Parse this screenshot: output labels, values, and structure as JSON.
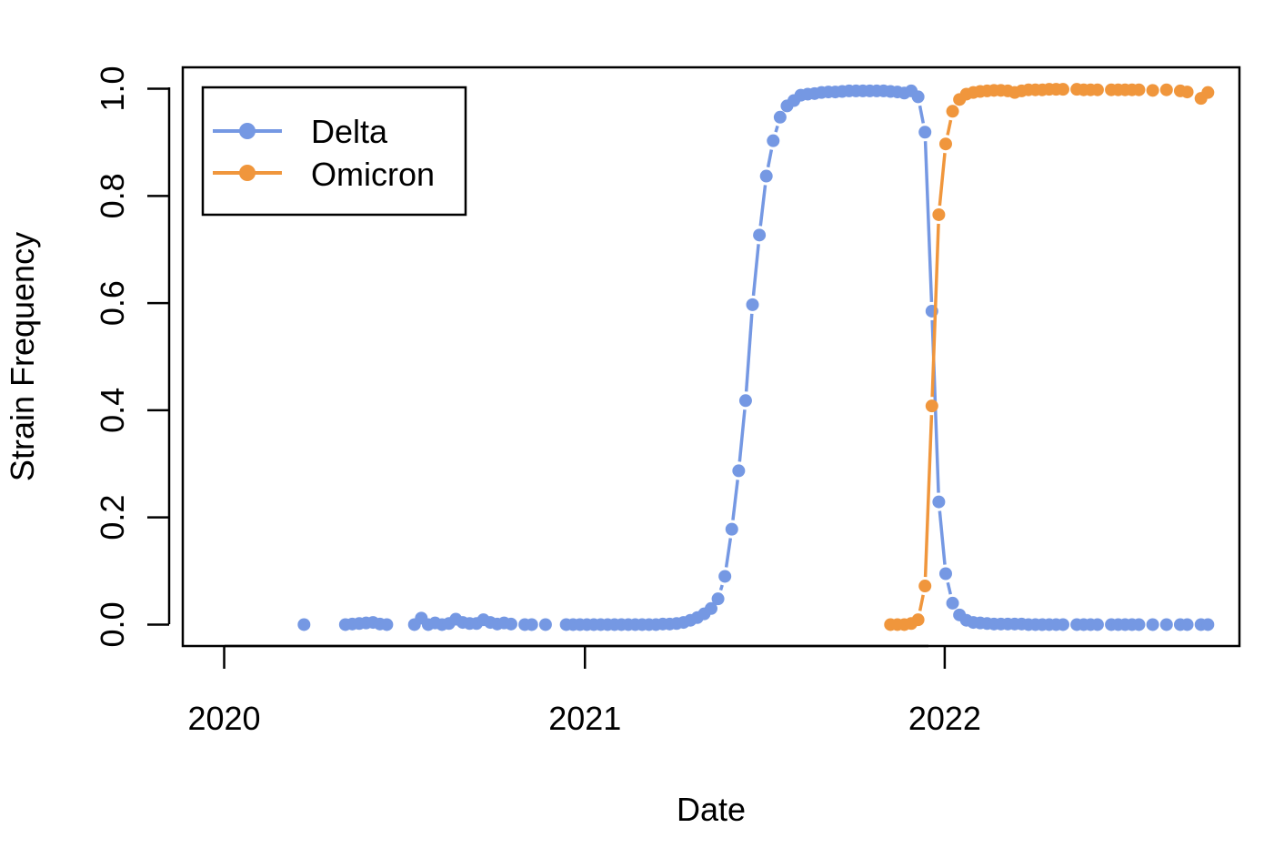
{
  "chart_data": {
    "type": "line",
    "xlabel": "Date",
    "ylabel": "Strain Frequency",
    "xlim": [
      "2019-11-20",
      "2022-10-27"
    ],
    "ylim": [
      -0.04,
      1.04
    ],
    "x_ticks": [
      "2020-01-01",
      "2021-01-01",
      "2022-01-01"
    ],
    "x_tick_labels": [
      "2020",
      "2021",
      "2022"
    ],
    "y_ticks": [
      0.0,
      0.2,
      0.4,
      0.6,
      0.8,
      1.0
    ],
    "y_tick_labels": [
      "0.0",
      "0.2",
      "0.4",
      "0.6",
      "0.8",
      "1.0"
    ],
    "grid": false,
    "legend_position": "top-left",
    "series": [
      {
        "name": "Delta",
        "color": "#7598E3",
        "points": [
          [
            "2020-03-22",
            0.0
          ],
          [
            "2020-05-03",
            0.0
          ],
          [
            "2020-05-10",
            0.001
          ],
          [
            "2020-05-17",
            0.002
          ],
          [
            "2020-05-24",
            0.003
          ],
          [
            "2020-05-31",
            0.004
          ],
          [
            "2020-06-07",
            0.001
          ],
          [
            "2020-06-14",
            0.0
          ],
          [
            "2020-07-12",
            0.0
          ],
          [
            "2020-07-19",
            0.012
          ],
          [
            "2020-07-26",
            0.0
          ],
          [
            "2020-08-02",
            0.003
          ],
          [
            "2020-08-09",
            0.0
          ],
          [
            "2020-08-16",
            0.002
          ],
          [
            "2020-08-23",
            0.01
          ],
          [
            "2020-08-30",
            0.004
          ],
          [
            "2020-09-06",
            0.002
          ],
          [
            "2020-09-13",
            0.002
          ],
          [
            "2020-09-20",
            0.009
          ],
          [
            "2020-09-27",
            0.004
          ],
          [
            "2020-10-04",
            0.001
          ],
          [
            "2020-10-11",
            0.003
          ],
          [
            "2020-10-18",
            0.001
          ],
          [
            "2020-11-01",
            0.0
          ],
          [
            "2020-11-08",
            0.0
          ],
          [
            "2020-11-22",
            0.0
          ],
          [
            "2020-12-13",
            0.0
          ],
          [
            "2020-12-20",
            0.0
          ],
          [
            "2020-12-27",
            0.0
          ],
          [
            "2021-01-03",
            0.0
          ],
          [
            "2021-01-10",
            0.0
          ],
          [
            "2021-01-17",
            0.0
          ],
          [
            "2021-01-24",
            0.0
          ],
          [
            "2021-01-31",
            0.0
          ],
          [
            "2021-02-07",
            0.0
          ],
          [
            "2021-02-14",
            0.0
          ],
          [
            "2021-02-21",
            0.0
          ],
          [
            "2021-02-28",
            0.0
          ],
          [
            "2021-03-07",
            0.0
          ],
          [
            "2021-03-14",
            0.0
          ],
          [
            "2021-03-21",
            0.001
          ],
          [
            "2021-03-28",
            0.001
          ],
          [
            "2021-04-04",
            0.002
          ],
          [
            "2021-04-11",
            0.004
          ],
          [
            "2021-04-18",
            0.008
          ],
          [
            "2021-04-25",
            0.013
          ],
          [
            "2021-05-02",
            0.02
          ],
          [
            "2021-05-09",
            0.03
          ],
          [
            "2021-05-16",
            0.048
          ],
          [
            "2021-05-23",
            0.09
          ],
          [
            "2021-05-30",
            0.178
          ],
          [
            "2021-06-06",
            0.287
          ],
          [
            "2021-06-13",
            0.418
          ],
          [
            "2021-06-20",
            0.597
          ],
          [
            "2021-06-27",
            0.727
          ],
          [
            "2021-07-04",
            0.837
          ],
          [
            "2021-07-11",
            0.903
          ],
          [
            "2021-07-18",
            0.947
          ],
          [
            "2021-07-25",
            0.968
          ],
          [
            "2021-08-01",
            0.978
          ],
          [
            "2021-08-08",
            0.988
          ],
          [
            "2021-08-15",
            0.99
          ],
          [
            "2021-08-22",
            0.991
          ],
          [
            "2021-08-29",
            0.993
          ],
          [
            "2021-09-05",
            0.994
          ],
          [
            "2021-09-12",
            0.994
          ],
          [
            "2021-09-19",
            0.995
          ],
          [
            "2021-09-26",
            0.996
          ],
          [
            "2021-10-03",
            0.996
          ],
          [
            "2021-10-10",
            0.996
          ],
          [
            "2021-10-17",
            0.996
          ],
          [
            "2021-10-24",
            0.996
          ],
          [
            "2021-10-31",
            0.996
          ],
          [
            "2021-11-07",
            0.995
          ],
          [
            "2021-11-14",
            0.994
          ],
          [
            "2021-11-21",
            0.992
          ],
          [
            "2021-11-28",
            0.996
          ],
          [
            "2021-12-05",
            0.985
          ],
          [
            "2021-12-12",
            0.919
          ],
          [
            "2021-12-19",
            0.585
          ],
          [
            "2021-12-26",
            0.229
          ],
          [
            "2022-01-02",
            0.095
          ],
          [
            "2022-01-09",
            0.04
          ],
          [
            "2022-01-16",
            0.018
          ],
          [
            "2022-01-23",
            0.008
          ],
          [
            "2022-01-30",
            0.004
          ],
          [
            "2022-02-06",
            0.003
          ],
          [
            "2022-02-13",
            0.002
          ],
          [
            "2022-02-20",
            0.001
          ],
          [
            "2022-02-27",
            0.001
          ],
          [
            "2022-03-06",
            0.001
          ],
          [
            "2022-03-13",
            0.001
          ],
          [
            "2022-03-20",
            0.001
          ],
          [
            "2022-03-27",
            0.0
          ],
          [
            "2022-04-03",
            0.0
          ],
          [
            "2022-04-10",
            0.0
          ],
          [
            "2022-04-17",
            0.0
          ],
          [
            "2022-04-24",
            0.0
          ],
          [
            "2022-05-01",
            0.0
          ],
          [
            "2022-05-15",
            0.0
          ],
          [
            "2022-05-22",
            0.0
          ],
          [
            "2022-05-29",
            0.0
          ],
          [
            "2022-06-05",
            0.0
          ],
          [
            "2022-06-19",
            0.0
          ],
          [
            "2022-06-26",
            0.0
          ],
          [
            "2022-07-03",
            0.0
          ],
          [
            "2022-07-10",
            0.0
          ],
          [
            "2022-07-17",
            0.0
          ],
          [
            "2022-07-31",
            0.0
          ],
          [
            "2022-08-14",
            0.0
          ],
          [
            "2022-08-28",
            0.0
          ],
          [
            "2022-09-04",
            0.0
          ],
          [
            "2022-09-18",
            0.0
          ],
          [
            "2022-09-25",
            0.0
          ]
        ]
      },
      {
        "name": "Omicron",
        "color": "#F0963C",
        "points": [
          [
            "2021-11-07",
            0.0
          ],
          [
            "2021-11-14",
            0.0
          ],
          [
            "2021-11-21",
            0.0
          ],
          [
            "2021-11-28",
            0.002
          ],
          [
            "2021-12-05",
            0.009
          ],
          [
            "2021-12-12",
            0.072
          ],
          [
            "2021-12-19",
            0.408
          ],
          [
            "2021-12-26",
            0.765
          ],
          [
            "2022-01-02",
            0.897
          ],
          [
            "2022-01-09",
            0.958
          ],
          [
            "2022-01-16",
            0.98
          ],
          [
            "2022-01-23",
            0.99
          ],
          [
            "2022-01-30",
            0.993
          ],
          [
            "2022-02-06",
            0.995
          ],
          [
            "2022-02-13",
            0.996
          ],
          [
            "2022-02-20",
            0.997
          ],
          [
            "2022-02-27",
            0.997
          ],
          [
            "2022-03-06",
            0.996
          ],
          [
            "2022-03-13",
            0.993
          ],
          [
            "2022-03-20",
            0.996
          ],
          [
            "2022-03-27",
            0.998
          ],
          [
            "2022-04-03",
            0.998
          ],
          [
            "2022-04-10",
            0.998
          ],
          [
            "2022-04-17",
            0.999
          ],
          [
            "2022-04-24",
            0.999
          ],
          [
            "2022-05-01",
            0.999
          ],
          [
            "2022-05-15",
            0.999
          ],
          [
            "2022-05-22",
            0.998
          ],
          [
            "2022-05-29",
            0.998
          ],
          [
            "2022-06-05",
            0.998
          ],
          [
            "2022-06-19",
            0.998
          ],
          [
            "2022-06-26",
            0.998
          ],
          [
            "2022-07-03",
            0.998
          ],
          [
            "2022-07-10",
            0.998
          ],
          [
            "2022-07-17",
            0.998
          ],
          [
            "2022-07-31",
            0.997
          ],
          [
            "2022-08-14",
            0.998
          ],
          [
            "2022-08-28",
            0.996
          ],
          [
            "2022-09-04",
            0.994
          ],
          [
            "2022-09-18",
            0.982
          ],
          [
            "2022-09-25",
            0.993
          ]
        ]
      }
    ]
  }
}
